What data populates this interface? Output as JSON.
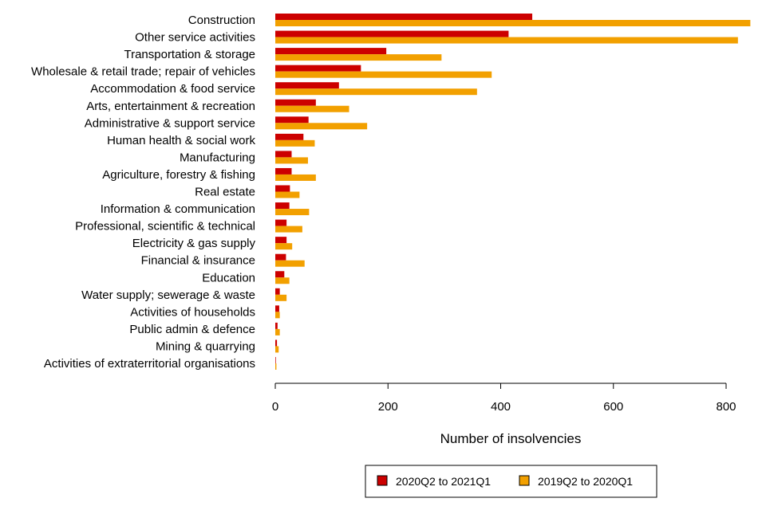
{
  "chart_data": {
    "type": "bar",
    "orientation": "horizontal",
    "title": "",
    "xlabel": "Number of insolvencies",
    "ylabel": "",
    "xlim": [
      0,
      845
    ],
    "xticks": [
      0,
      200,
      400,
      600,
      800
    ],
    "grid": false,
    "legend_position": "bottom-right",
    "categories": [
      "Construction",
      "Other service activities",
      "Transportation & storage",
      "Wholesale & retail trade; repair of vehicles",
      "Accommodation & food service",
      "Arts, entertainment & recreation",
      "Administrative & support service",
      "Human health & social work",
      "Manufacturing",
      "Agriculture, forestry & fishing",
      "Real estate",
      "Information & communication",
      "Professional, scientific & technical",
      "Electricity & gas supply",
      "Financial & insurance",
      "Education",
      "Water supply; sewerage & waste",
      "Activities of households",
      "Public admin & defence",
      "Mining & quarrying",
      "Activities of extraterritorial organisations"
    ],
    "series": [
      {
        "name": "2020Q2 to 2021Q1",
        "color": "#cc0000",
        "values": [
          456,
          414,
          197,
          152,
          113,
          72,
          59,
          50,
          29,
          29,
          26,
          25,
          20,
          20,
          19,
          16,
          8,
          7,
          4,
          3,
          1
        ]
      },
      {
        "name": "2019Q2 to 2020Q1",
        "color": "#f2a000",
        "values": [
          843,
          821,
          295,
          384,
          358,
          131,
          163,
          70,
          58,
          72,
          43,
          60,
          48,
          30,
          52,
          25,
          20,
          8,
          8,
          6,
          2
        ]
      }
    ]
  }
}
